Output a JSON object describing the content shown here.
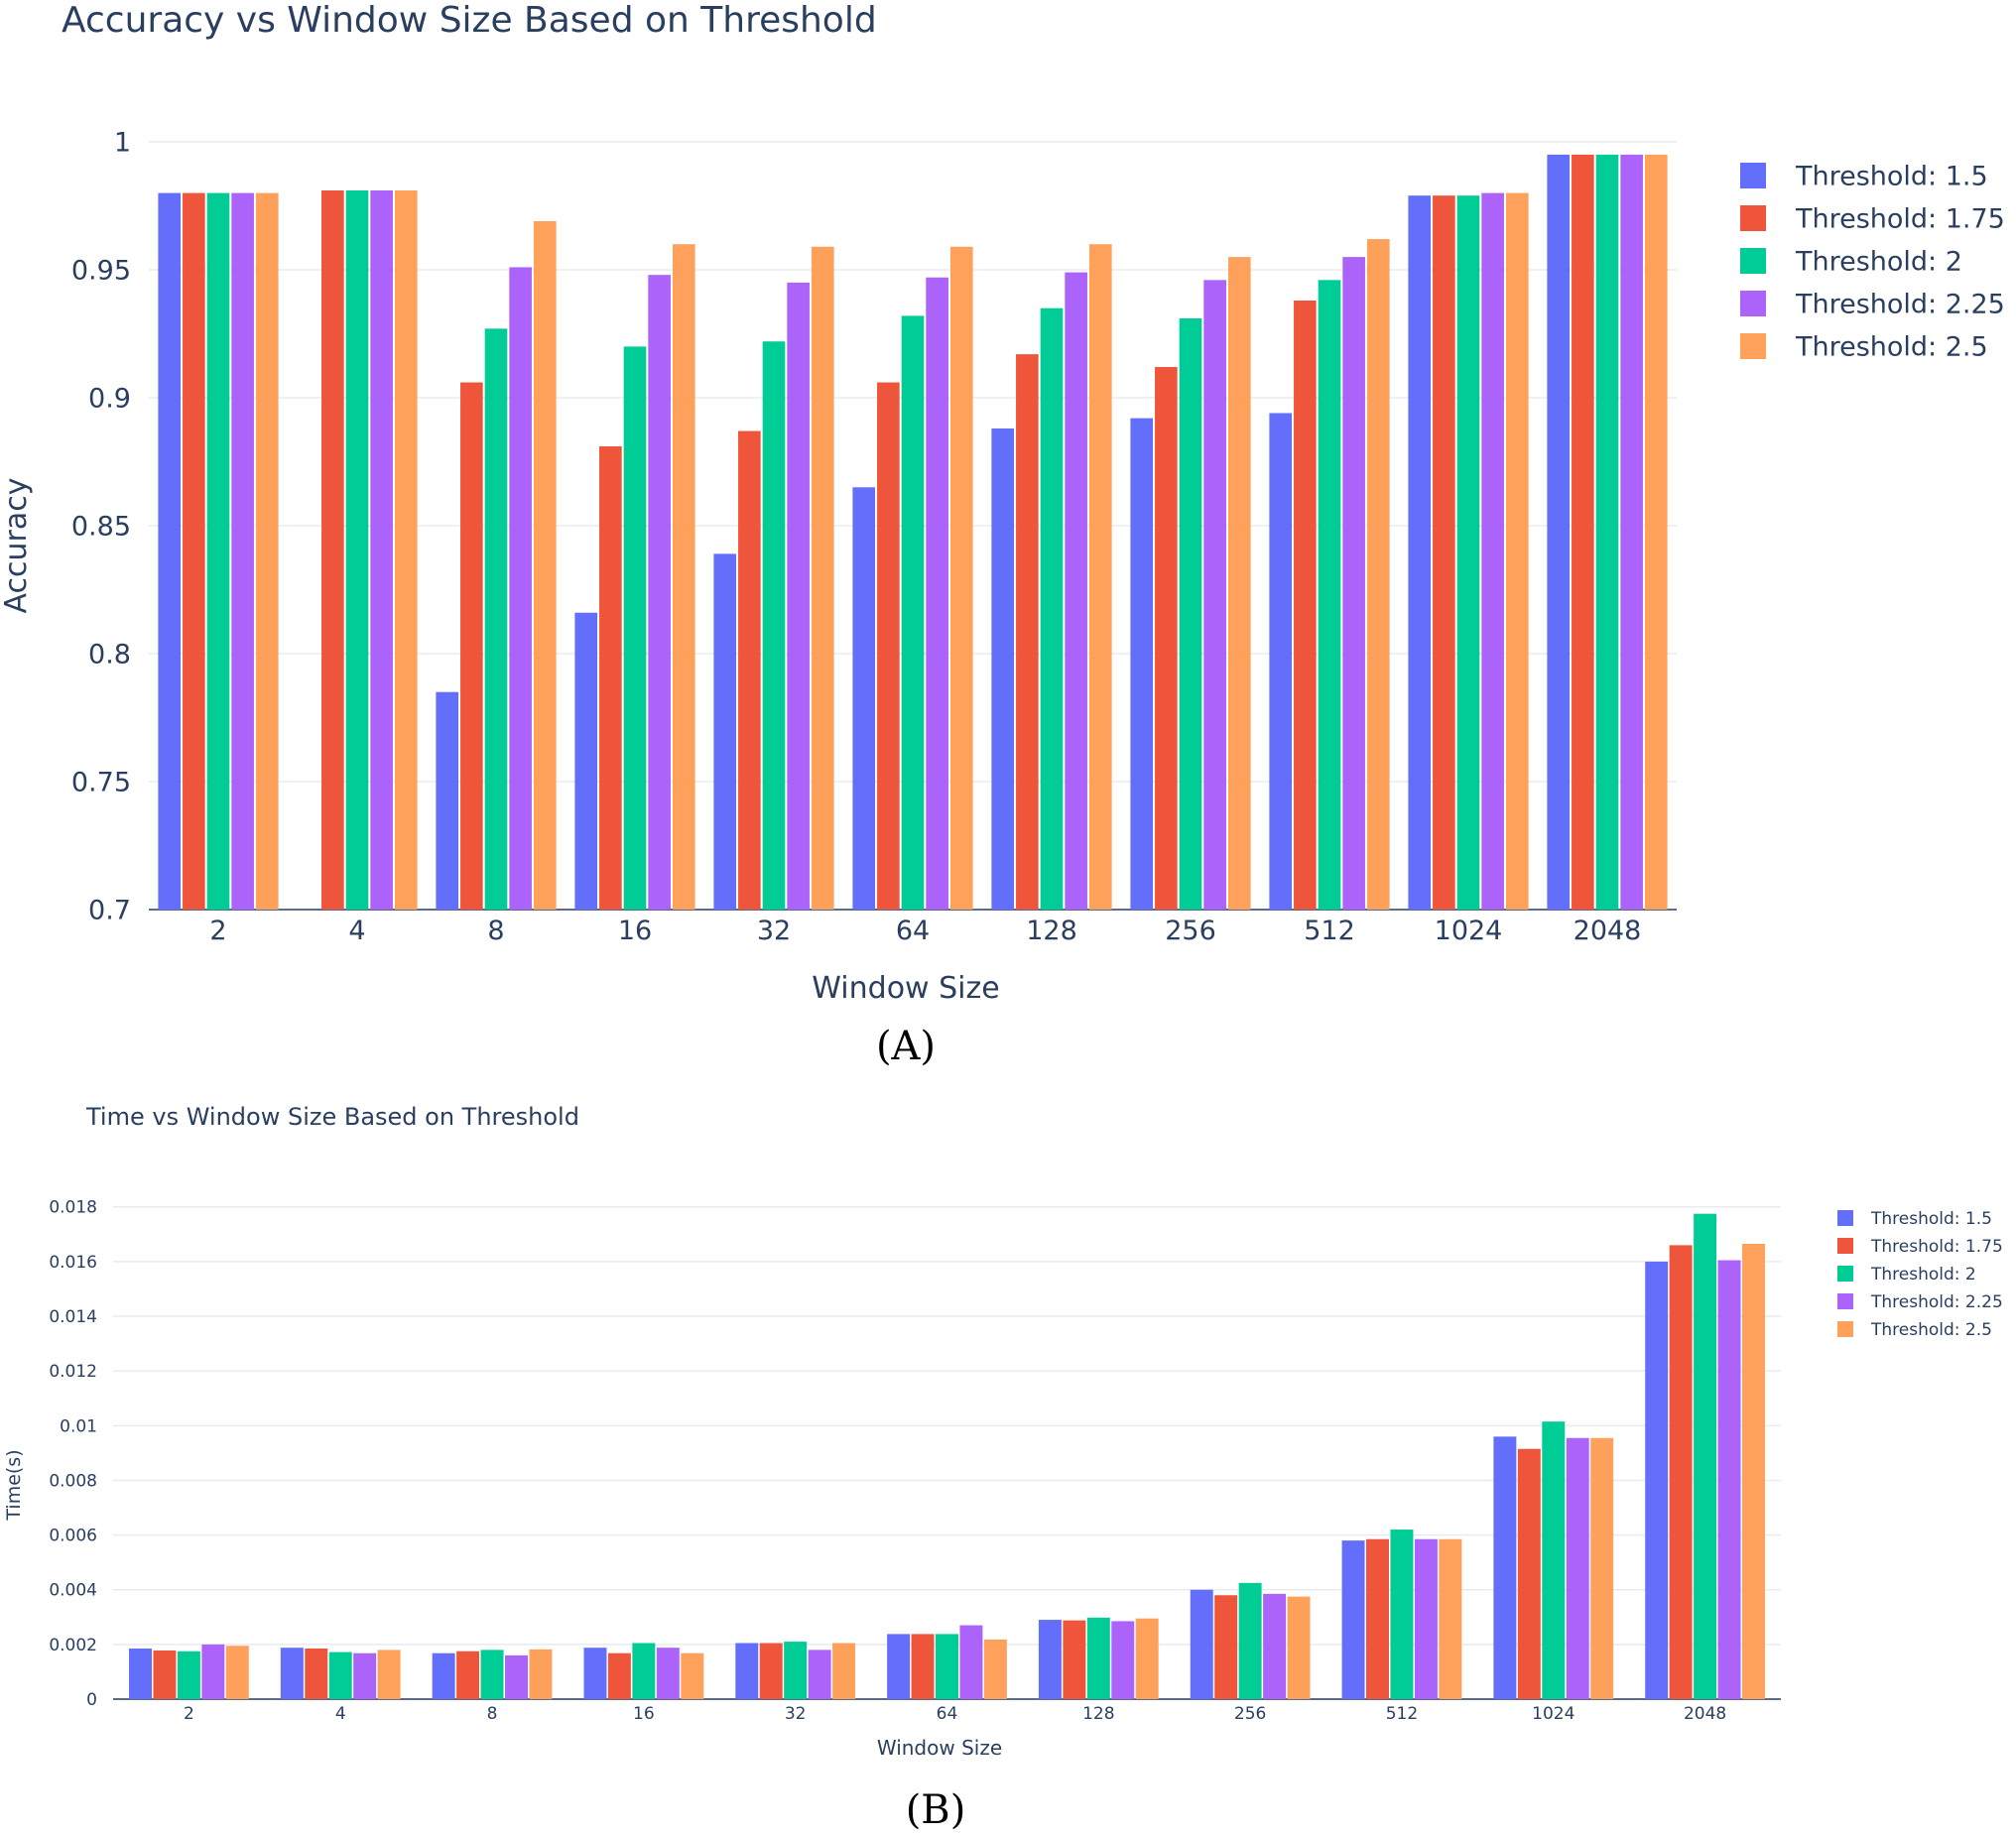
{
  "colors": {
    "Threshold: 1.5": "#636efa",
    "Threshold: 1.75": "#ef553b",
    "Threshold: 2": "#00cc96",
    "Threshold: 2.25": "#ab63fa",
    "Threshold: 2.5": "#ffa15a"
  },
  "chart_data": [
    {
      "type": "bar",
      "title": "Accuracy vs Window Size Based on Threshold",
      "xlabel": "Window Size",
      "ylabel": "Accuracy",
      "panel_label": "(A)",
      "categories": [
        "2",
        "4",
        "8",
        "16",
        "32",
        "64",
        "128",
        "256",
        "512",
        "1024",
        "2048"
      ],
      "ylim": [
        0.7,
        1.0
      ],
      "yticks": [
        0.7,
        0.75,
        0.8,
        0.85,
        0.9,
        0.95,
        1
      ],
      "ytick_labels": [
        "0.7",
        "0.75",
        "0.8",
        "0.85",
        "0.9",
        "0.95",
        "1"
      ],
      "grid": true,
      "legend": "top-right",
      "series": [
        {
          "name": "Threshold: 1.5",
          "values": [
            0.98,
            0.7,
            0.785,
            0.816,
            0.839,
            0.865,
            0.888,
            0.892,
            0.894,
            0.979,
            0.995
          ]
        },
        {
          "name": "Threshold: 1.75",
          "values": [
            0.98,
            0.981,
            0.906,
            0.881,
            0.887,
            0.906,
            0.917,
            0.912,
            0.938,
            0.979,
            0.995
          ]
        },
        {
          "name": "Threshold: 2",
          "values": [
            0.98,
            0.981,
            0.927,
            0.92,
            0.922,
            0.932,
            0.935,
            0.931,
            0.946,
            0.979,
            0.995
          ]
        },
        {
          "name": "Threshold: 2.25",
          "values": [
            0.98,
            0.981,
            0.951,
            0.948,
            0.945,
            0.947,
            0.949,
            0.946,
            0.955,
            0.98,
            0.995
          ]
        },
        {
          "name": "Threshold: 2.5",
          "values": [
            0.98,
            0.981,
            0.969,
            0.96,
            0.959,
            0.959,
            0.96,
            0.955,
            0.962,
            0.98,
            0.995
          ]
        }
      ]
    },
    {
      "type": "bar",
      "title": "Time vs Window Size Based on Threshold",
      "xlabel": "Window Size",
      "ylabel": "Time(s)",
      "panel_label": "(B)",
      "categories": [
        "2",
        "4",
        "8",
        "16",
        "32",
        "64",
        "128",
        "256",
        "512",
        "1024",
        "2048"
      ],
      "ylim": [
        0,
        0.0185
      ],
      "yticks": [
        0,
        0.002,
        0.004,
        0.006,
        0.008,
        0.01,
        0.012,
        0.014,
        0.016,
        0.018
      ],
      "ytick_labels": [
        "0",
        "0.002",
        "0.004",
        "0.006",
        "0.008",
        "0.01",
        "0.012",
        "0.014",
        "0.016",
        "0.018"
      ],
      "grid": true,
      "legend": "top-right",
      "series": [
        {
          "name": "Threshold: 1.5",
          "values": [
            0.00185,
            0.00188,
            0.00168,
            0.00188,
            0.00205,
            0.00238,
            0.0029,
            0.004,
            0.0058,
            0.0096,
            0.016
          ]
        },
        {
          "name": "Threshold: 1.75",
          "values": [
            0.00178,
            0.00185,
            0.00175,
            0.00168,
            0.00205,
            0.00238,
            0.00288,
            0.0038,
            0.00585,
            0.00915,
            0.0166
          ]
        },
        {
          "name": "Threshold: 2",
          "values": [
            0.00175,
            0.00172,
            0.0018,
            0.00205,
            0.0021,
            0.00238,
            0.00298,
            0.00425,
            0.0062,
            0.01015,
            0.01775
          ]
        },
        {
          "name": "Threshold: 2.25",
          "values": [
            0.002,
            0.00168,
            0.0016,
            0.00188,
            0.0018,
            0.0027,
            0.00285,
            0.00385,
            0.00585,
            0.00955,
            0.01605
          ]
        },
        {
          "name": "Threshold: 2.5",
          "values": [
            0.00195,
            0.0018,
            0.00182,
            0.00168,
            0.00205,
            0.00218,
            0.00295,
            0.00375,
            0.00585,
            0.00955,
            0.01665
          ]
        }
      ]
    }
  ]
}
